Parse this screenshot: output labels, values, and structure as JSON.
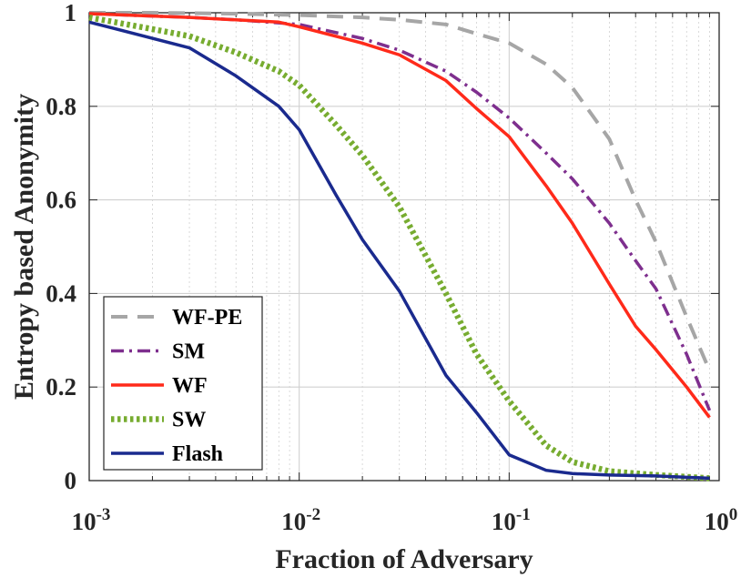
{
  "chart_data": {
    "type": "line",
    "title": "",
    "xlabel": "Fraction of Adversary",
    "ylabel": "Entropy based Anonymity",
    "xscale": "log",
    "xlim": [
      0.001,
      1
    ],
    "ylim": [
      0,
      1
    ],
    "x_ticks": [
      {
        "value": 0.001,
        "base": "10",
        "exp": "-3"
      },
      {
        "value": 0.01,
        "base": "10",
        "exp": "-2"
      },
      {
        "value": 0.1,
        "base": "10",
        "exp": "-1"
      },
      {
        "value": 1,
        "base": "10",
        "exp": "0"
      }
    ],
    "y_ticks": [
      {
        "value": 0,
        "label": "0"
      },
      {
        "value": 0.2,
        "label": "0.2"
      },
      {
        "value": 0.4,
        "label": "0.4"
      },
      {
        "value": 0.6,
        "label": "0.6"
      },
      {
        "value": 0.8,
        "label": "0.8"
      },
      {
        "value": 1,
        "label": "1"
      }
    ],
    "grid": true,
    "legend_position": "bottom-left",
    "series": [
      {
        "name": "WF-PE",
        "color": "#a6a6a6",
        "style": "dashed",
        "points": [
          [
            0.001,
            1.0
          ],
          [
            0.002,
            1.0
          ],
          [
            0.005,
            0.998
          ],
          [
            0.01,
            0.995
          ],
          [
            0.02,
            0.99
          ],
          [
            0.03,
            0.985
          ],
          [
            0.05,
            0.975
          ],
          [
            0.07,
            0.955
          ],
          [
            0.1,
            0.935
          ],
          [
            0.15,
            0.89
          ],
          [
            0.2,
            0.84
          ],
          [
            0.3,
            0.73
          ],
          [
            0.4,
            0.6
          ],
          [
            0.5,
            0.51
          ],
          [
            0.7,
            0.35
          ],
          [
            0.9,
            0.235
          ]
        ]
      },
      {
        "name": "SM",
        "color": "#7e2f8e",
        "style": "dashdot",
        "points": [
          [
            0.001,
            0.998
          ],
          [
            0.003,
            0.99
          ],
          [
            0.005,
            0.985
          ],
          [
            0.01,
            0.975
          ],
          [
            0.02,
            0.945
          ],
          [
            0.03,
            0.92
          ],
          [
            0.05,
            0.875
          ],
          [
            0.07,
            0.83
          ],
          [
            0.1,
            0.775
          ],
          [
            0.15,
            0.7
          ],
          [
            0.2,
            0.645
          ],
          [
            0.3,
            0.55
          ],
          [
            0.4,
            0.47
          ],
          [
            0.5,
            0.41
          ],
          [
            0.7,
            0.27
          ],
          [
            0.9,
            0.15
          ]
        ]
      },
      {
        "name": "WF",
        "color": "#ff2a1a",
        "style": "solid",
        "points": [
          [
            0.001,
            0.998
          ],
          [
            0.003,
            0.99
          ],
          [
            0.008,
            0.98
          ],
          [
            0.01,
            0.97
          ],
          [
            0.02,
            0.935
          ],
          [
            0.03,
            0.91
          ],
          [
            0.05,
            0.855
          ],
          [
            0.07,
            0.795
          ],
          [
            0.1,
            0.735
          ],
          [
            0.15,
            0.63
          ],
          [
            0.2,
            0.55
          ],
          [
            0.3,
            0.42
          ],
          [
            0.4,
            0.33
          ],
          [
            0.5,
            0.28
          ],
          [
            0.7,
            0.2
          ],
          [
            0.9,
            0.135
          ]
        ]
      },
      {
        "name": "SW",
        "color": "#77ac30",
        "style": "dotted",
        "points": [
          [
            0.001,
            0.99
          ],
          [
            0.002,
            0.965
          ],
          [
            0.003,
            0.95
          ],
          [
            0.005,
            0.915
          ],
          [
            0.008,
            0.875
          ],
          [
            0.01,
            0.845
          ],
          [
            0.015,
            0.76
          ],
          [
            0.02,
            0.695
          ],
          [
            0.03,
            0.585
          ],
          [
            0.05,
            0.4
          ],
          [
            0.07,
            0.27
          ],
          [
            0.1,
            0.17
          ],
          [
            0.15,
            0.075
          ],
          [
            0.2,
            0.04
          ],
          [
            0.3,
            0.02
          ],
          [
            0.5,
            0.012
          ],
          [
            0.9,
            0.005
          ]
        ]
      },
      {
        "name": "Flash",
        "color": "#1a2a8e",
        "style": "solid",
        "points": [
          [
            0.001,
            0.98
          ],
          [
            0.003,
            0.925
          ],
          [
            0.005,
            0.865
          ],
          [
            0.008,
            0.8
          ],
          [
            0.01,
            0.75
          ],
          [
            0.015,
            0.61
          ],
          [
            0.02,
            0.515
          ],
          [
            0.03,
            0.405
          ],
          [
            0.05,
            0.225
          ],
          [
            0.07,
            0.145
          ],
          [
            0.1,
            0.055
          ],
          [
            0.15,
            0.022
          ],
          [
            0.2,
            0.015
          ],
          [
            0.3,
            0.012
          ],
          [
            0.5,
            0.01
          ],
          [
            0.9,
            0.005
          ]
        ]
      }
    ]
  }
}
